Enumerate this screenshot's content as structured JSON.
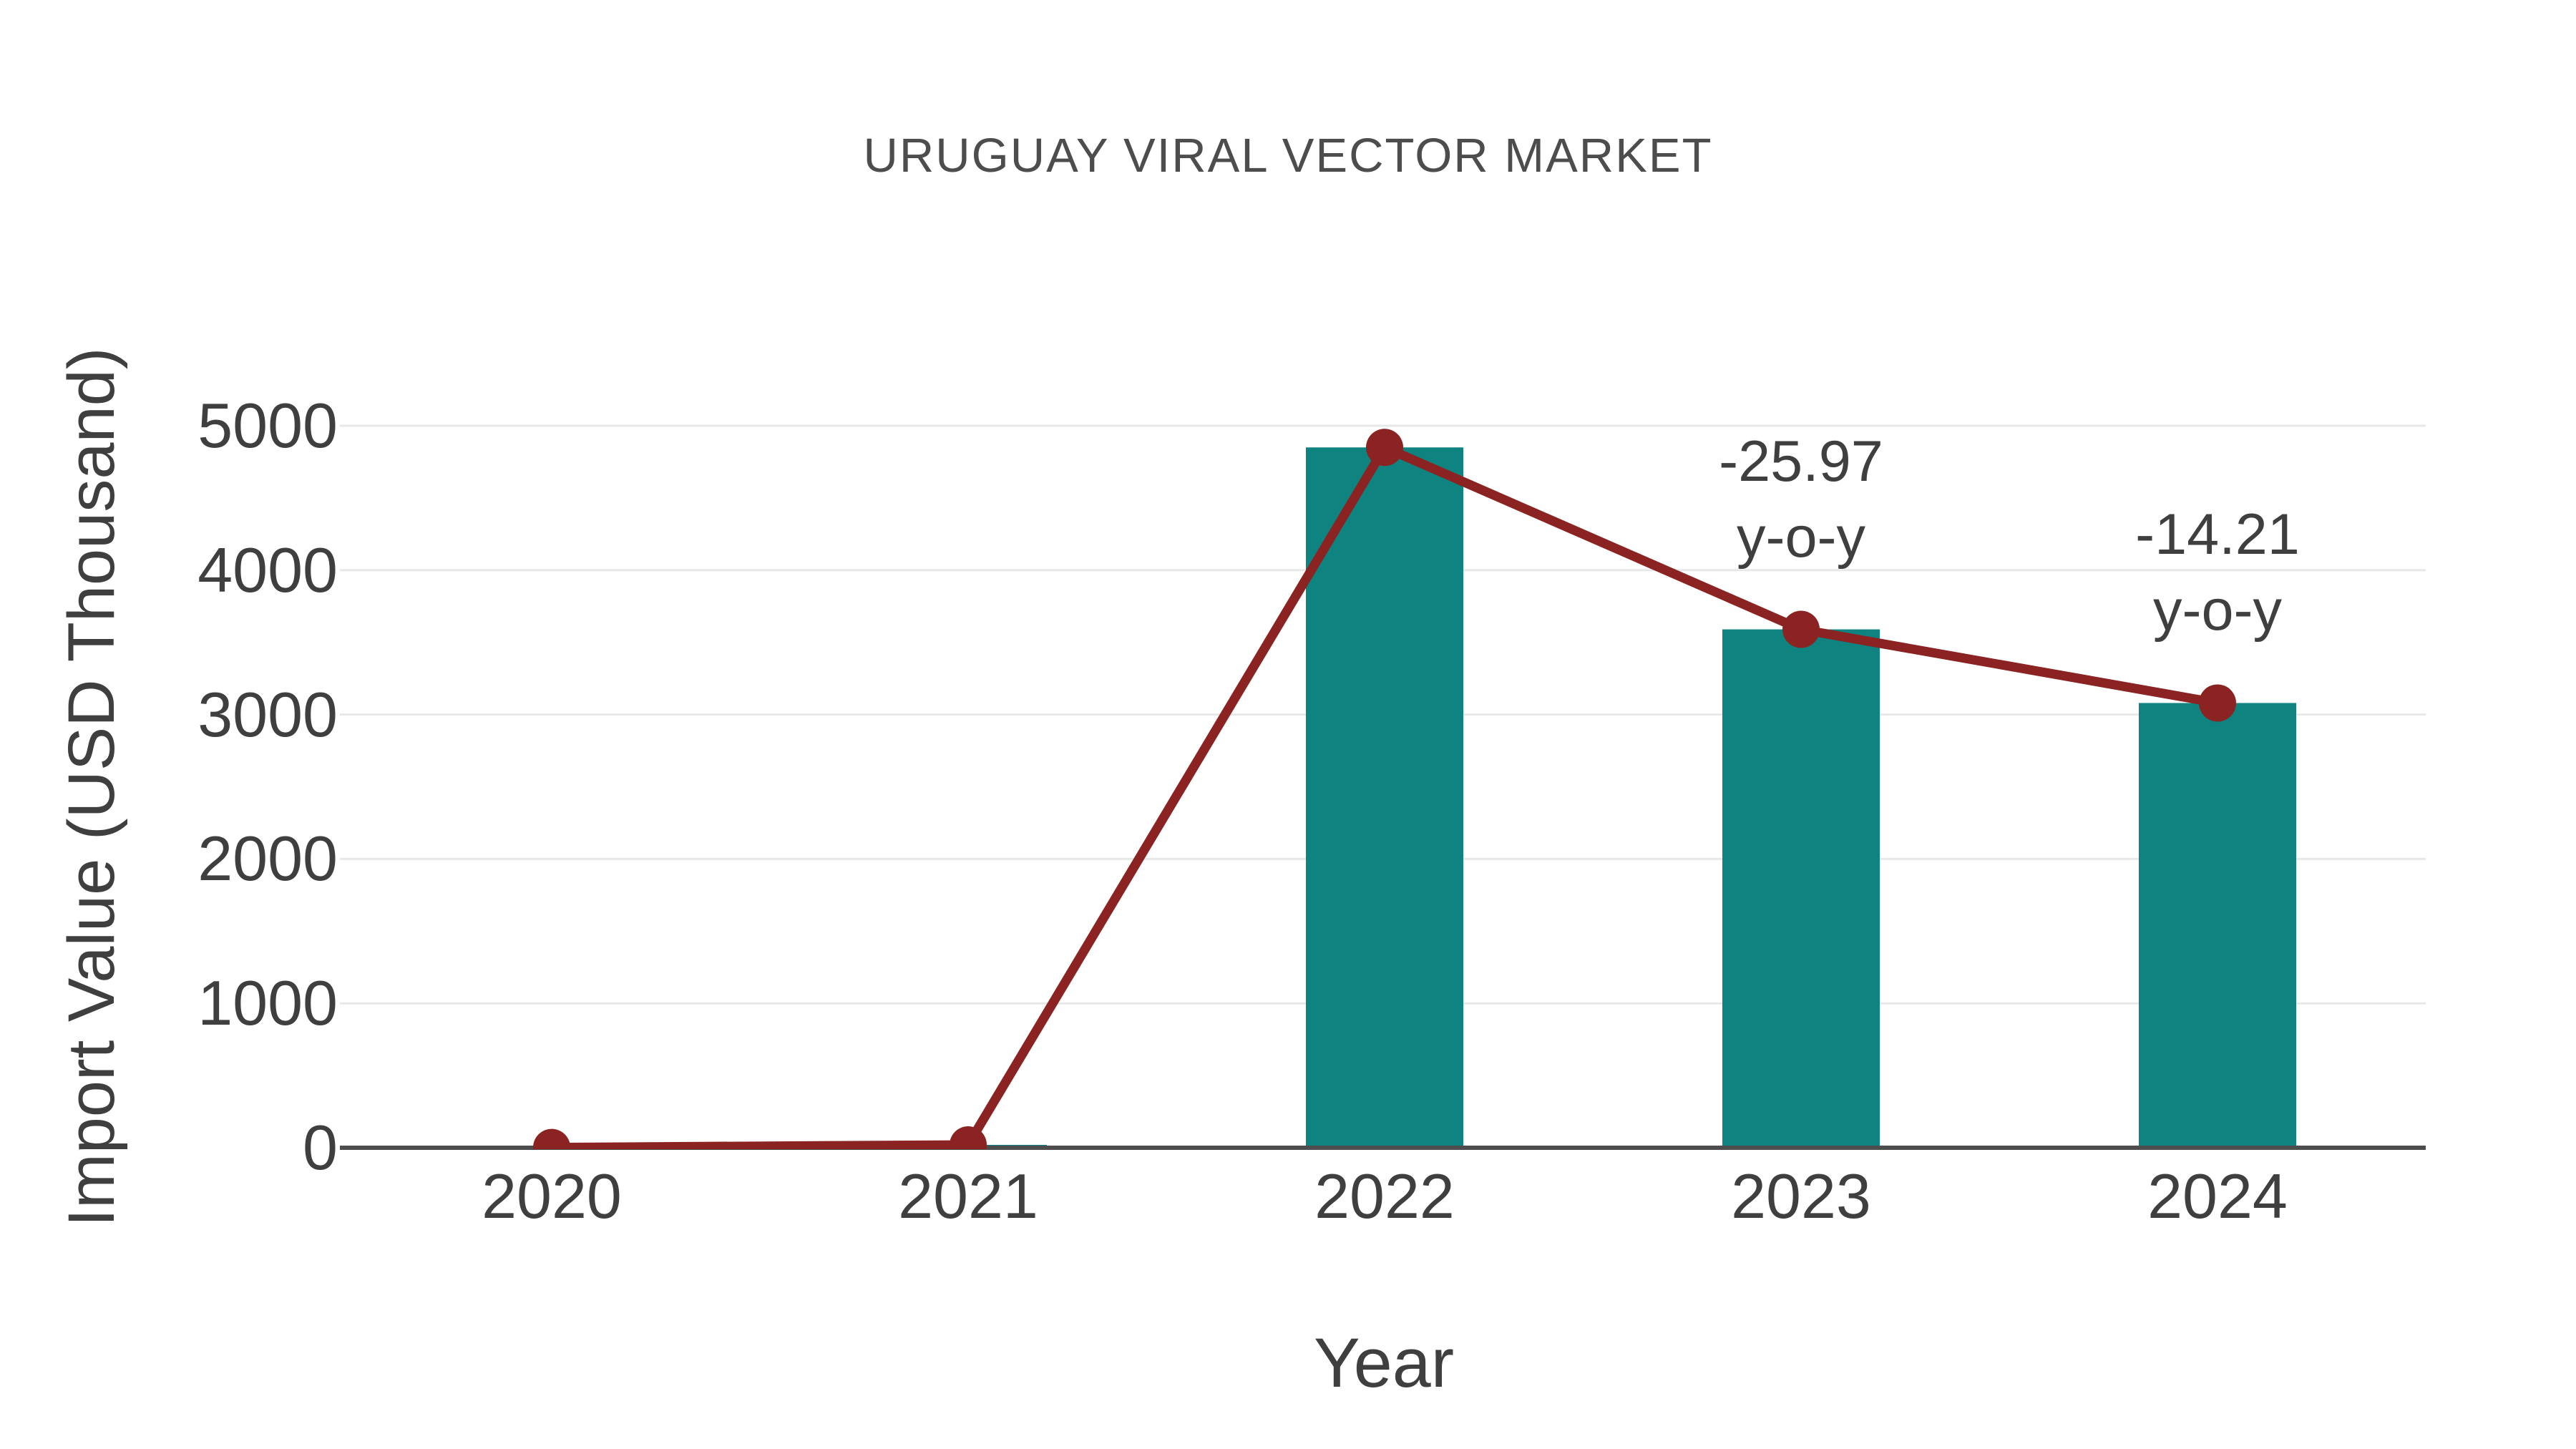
{
  "chart_data": {
    "type": "bar",
    "overlay": "line",
    "title": "URUGUAY VIRAL VECTOR MARKET",
    "xlabel": "Year",
    "ylabel": "Import Value (USD Thousand)",
    "categories": [
      "2020",
      "2021",
      "2022",
      "2023",
      "2024"
    ],
    "values": [
      2,
      20,
      4850,
      3590,
      3080
    ],
    "yticks": [
      0,
      1000,
      2000,
      3000,
      4000,
      5000
    ],
    "ylim": [
      0,
      5000
    ],
    "grid": true,
    "legend": false,
    "annotations": [
      {
        "category": "2023",
        "lines": [
          "-25.97",
          "y-o-y"
        ]
      },
      {
        "category": "2024",
        "lines": [
          "-14.21",
          "y-o-y"
        ]
      }
    ],
    "colors": {
      "bar": "#0e8380",
      "line": "#8b2322",
      "marker": "#8b2322",
      "grid": "#e8e8e8",
      "axis": "#4d4d4d",
      "text": "#3f3f3f",
      "title": "#4d4d4d"
    }
  }
}
